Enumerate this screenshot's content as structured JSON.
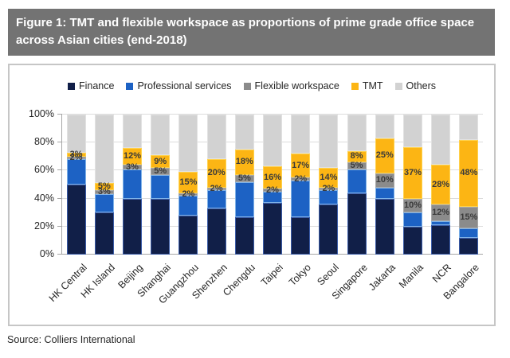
{
  "figure": {
    "title": "Figure 1: TMT and flexible workspace as proportions of prime grade office space across Asian cities (end-2018)"
  },
  "source": "Source: Colliers International",
  "chart_data": {
    "type": "bar",
    "stacked": true,
    "title": "Figure 1: TMT and flexible workspace as proportions of prime grade office space across Asian cities (end-2018)",
    "xlabel": "",
    "ylabel": "",
    "ylim": [
      0,
      100
    ],
    "yticks": [
      "0%",
      "20%",
      "40%",
      "60%",
      "80%",
      "100%"
    ],
    "grid": true,
    "legend_position": "top",
    "categories": [
      "HK Central",
      "HK Island",
      "Beijing",
      "Shanghai",
      "Guangzhou",
      "Shenzhen",
      "Chengdu",
      "Taipei",
      "Tokyo",
      "Seoul",
      "Singapore",
      "Jakarta",
      "Manila",
      "NCR",
      "Bangalore"
    ],
    "series": [
      {
        "name": "Finance",
        "color": "#111f48",
        "stroke": "#3b5ca8",
        "values": [
          50,
          30,
          40,
          40,
          28,
          33,
          27,
          37,
          27,
          36,
          44,
          40,
          20,
          21,
          12
        ]
      },
      {
        "name": "Professional services",
        "color": "#1d62c4",
        "stroke": "#7fb2e8",
        "values": [
          18,
          13,
          21,
          17,
          14,
          13,
          25,
          8,
          26,
          10,
          17,
          8,
          10,
          3,
          7
        ]
      },
      {
        "name": "Flexible workspace",
        "color": "#8b8b8b",
        "stroke": "#a9a9a9",
        "values": [
          2,
          3,
          3,
          5,
          2,
          2,
          5,
          2,
          2,
          2,
          5,
          10,
          10,
          12,
          15
        ]
      },
      {
        "name": "TMT",
        "color": "#fcb514",
        "stroke": "#ffd24d",
        "values": [
          3,
          5,
          12,
          9,
          15,
          20,
          18,
          16,
          17,
          14,
          8,
          25,
          37,
          28,
          48
        ]
      },
      {
        "name": "Others",
        "color": "#d2d2d2",
        "stroke": "#e2e2e2",
        "values": [
          27,
          49,
          24,
          29,
          41,
          32,
          25,
          37,
          28,
          38,
          26,
          17,
          23,
          36,
          18
        ]
      }
    ],
    "data_labels": {
      "TMT": [
        "3%",
        "5%",
        "12%",
        "9%",
        "15%",
        "20%",
        "18%",
        "16%",
        "17%",
        "14%",
        "8%",
        "25%",
        "37%",
        "28%",
        "48%"
      ],
      "Flexible workspace": [
        "2%",
        "3%",
        "3%",
        "5%",
        "2%",
        "2%",
        "5%",
        "2%",
        "2%",
        "2%",
        "5%",
        "10%",
        "10%",
        "12%",
        "15%"
      ]
    }
  }
}
